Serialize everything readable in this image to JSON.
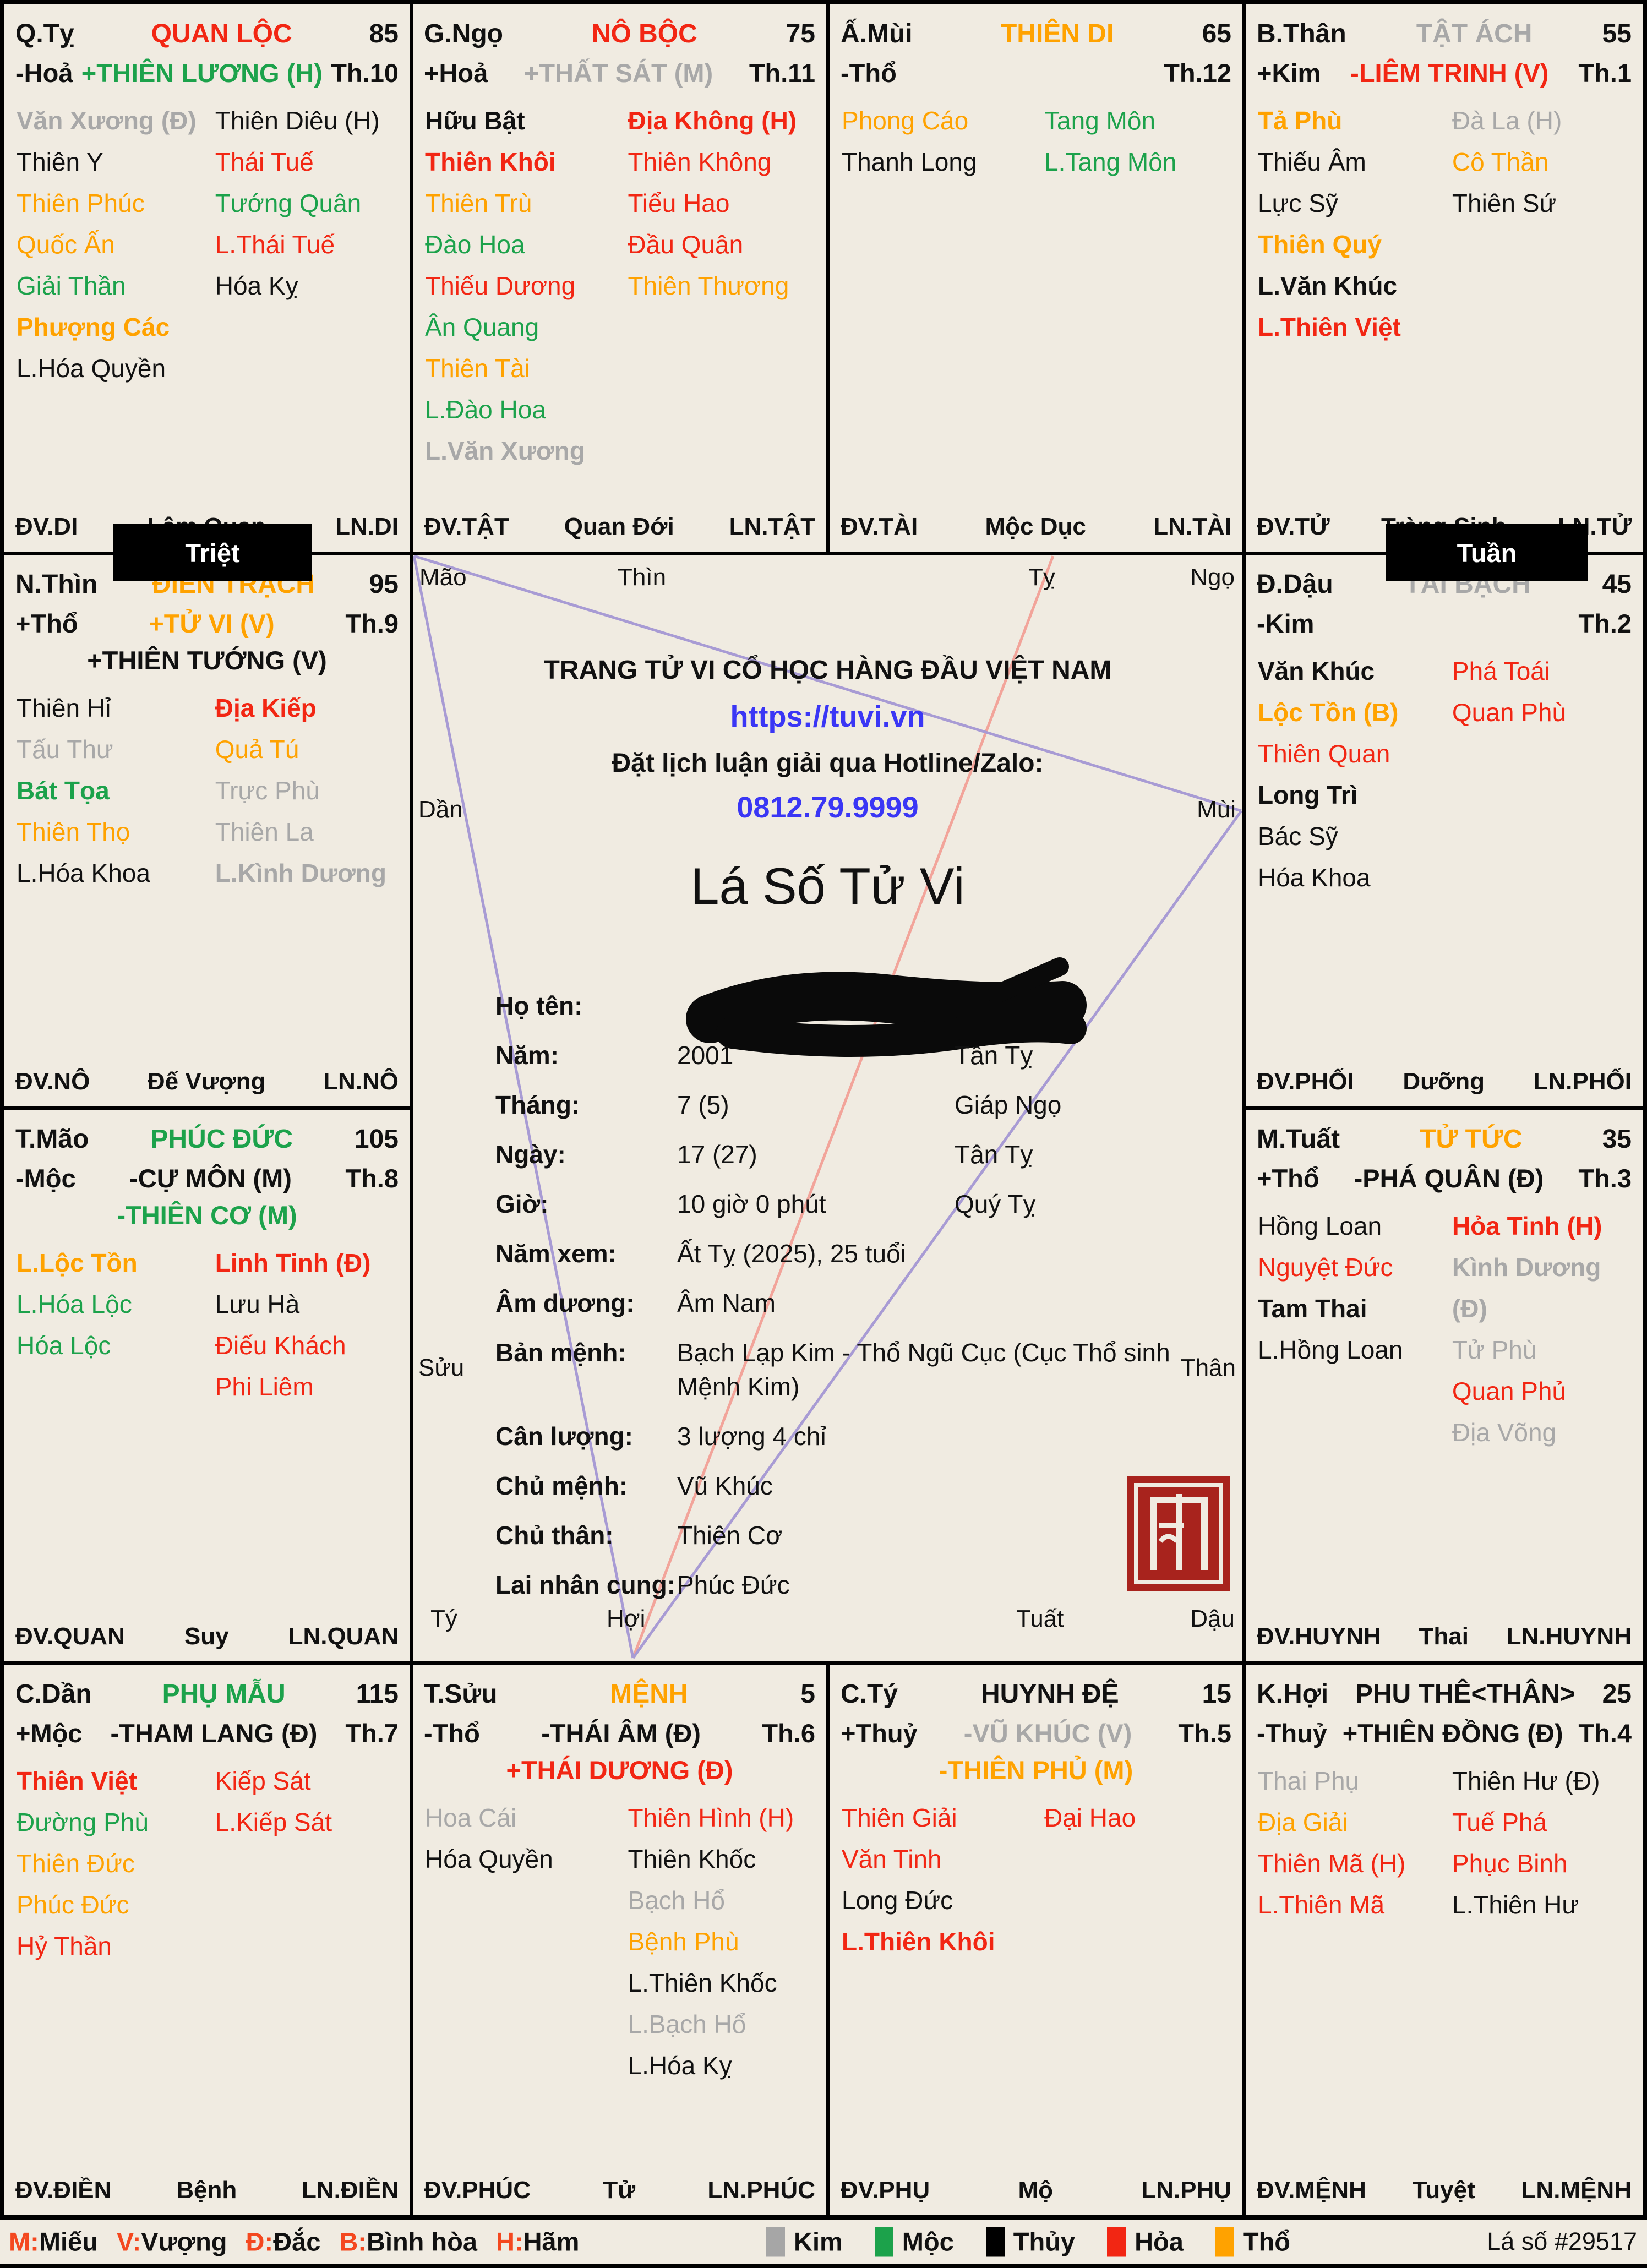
{
  "colors": {
    "background": "#f0ebe1",
    "black": "#111111",
    "red": "#f22613",
    "orange": "#ffa200",
    "green": "#1ca24b",
    "gray": "#a8a8a8",
    "blue": "#3a36f5",
    "seal_red": "#a8231d",
    "line_purple": "#a89bd4",
    "line_salmon": "#f2a49a",
    "badge_bg": "#000000"
  },
  "badges": [
    {
      "label": "Triệt"
    },
    {
      "label": "Tuần"
    }
  ],
  "palaces": [
    {
      "key": "quan-loc",
      "slot": "r1c1",
      "branch": "Q.Tỵ",
      "name": "QUAN LỘC",
      "name_color": "red",
      "score": "85",
      "element": "-Hoả",
      "th": "Th.10",
      "mains": [
        {
          "text": "+THIÊN LƯƠNG (H)",
          "color": "green"
        }
      ],
      "stars_left": [
        {
          "text": "Văn Xương (Đ)",
          "color": "gray",
          "bold": true
        },
        {
          "text": "Thiên Y",
          "color": "black"
        },
        {
          "text": "Thiên Phúc",
          "color": "orange"
        },
        {
          "text": "Quốc Ấn",
          "color": "orange"
        },
        {
          "text": "Giải Thần",
          "color": "green"
        },
        {
          "text": "Phượng Các",
          "color": "orange",
          "bold": true
        },
        {
          "text": "L.Hóa Quyền",
          "color": "black"
        }
      ],
      "stars_right": [
        {
          "text": "Thiên Diêu (H)",
          "color": "black"
        },
        {
          "text": "Thái Tuế",
          "color": "red"
        },
        {
          "text": "Tướng Quân",
          "color": "green"
        },
        {
          "text": "L.Thái Tuế",
          "color": "red"
        },
        {
          "text": "Hóa Kỵ",
          "color": "black"
        }
      ],
      "dv": "ĐV.DI",
      "van": "Lâm Quan",
      "ln": "LN.DI"
    },
    {
      "key": "no-boc",
      "slot": "r1c2",
      "branch": "G.Ngọ",
      "name": "NÔ BỘC",
      "name_color": "red",
      "score": "75",
      "element": "+Hoả",
      "th": "Th.11",
      "mains": [
        {
          "text": "+THẤT SÁT (M)",
          "color": "gray"
        }
      ],
      "stars_left": [
        {
          "text": "Hữu Bật",
          "color": "black",
          "bold": true
        },
        {
          "text": "Thiên Khôi",
          "color": "red",
          "bold": true
        },
        {
          "text": "Thiên Trù",
          "color": "orange"
        },
        {
          "text": "Đào Hoa",
          "color": "green"
        },
        {
          "text": "Thiếu Dương",
          "color": "red"
        },
        {
          "text": "Ân Quang",
          "color": "green"
        },
        {
          "text": "Thiên Tài",
          "color": "orange"
        },
        {
          "text": "L.Đào Hoa",
          "color": "green"
        },
        {
          "text": "L.Văn Xương",
          "color": "gray",
          "bold": true
        }
      ],
      "stars_right": [
        {
          "text": "Địa Không (H)",
          "color": "red",
          "bold": true
        },
        {
          "text": "Thiên Không",
          "color": "red"
        },
        {
          "text": "Tiểu Hao",
          "color": "red"
        },
        {
          "text": "Đầu Quân",
          "color": "red"
        },
        {
          "text": "Thiên Thương",
          "color": "orange"
        }
      ],
      "dv": "ĐV.TẬT",
      "van": "Quan Đới",
      "ln": "LN.TẬT"
    },
    {
      "key": "thien-di",
      "slot": "r1c3",
      "branch": "Ấ.Mùi",
      "name": "THIÊN DI",
      "name_color": "orange",
      "score": "65",
      "element": "-Thổ",
      "th": "Th.12",
      "mains": [],
      "stars_left": [
        {
          "text": "Phong Cáo",
          "color": "orange"
        },
        {
          "text": "Thanh Long",
          "color": "black"
        }
      ],
      "stars_right": [
        {
          "text": "Tang Môn",
          "color": "green"
        },
        {
          "text": "L.Tang Môn",
          "color": "green"
        }
      ],
      "dv": "ĐV.TÀI",
      "van": "Mộc Dục",
      "ln": "LN.TÀI"
    },
    {
      "key": "tat-ach",
      "slot": "r1c4",
      "branch": "B.Thân",
      "name": "TẬT ÁCH",
      "name_color": "gray",
      "score": "55",
      "element": "+Kim",
      "th": "Th.1",
      "mains": [
        {
          "text": "-LIÊM TRINH (V)",
          "color": "red"
        }
      ],
      "stars_left": [
        {
          "text": "Tả Phù",
          "color": "orange",
          "bold": true
        },
        {
          "text": "Thiếu Âm",
          "color": "black"
        },
        {
          "text": "Lực Sỹ",
          "color": "black"
        },
        {
          "text": "Thiên Quý",
          "color": "orange",
          "bold": true
        },
        {
          "text": "L.Văn Khúc",
          "color": "black",
          "bold": true
        },
        {
          "text": "L.Thiên Việt",
          "color": "red",
          "bold": true
        }
      ],
      "stars_right": [
        {
          "text": "Đà La (H)",
          "color": "gray"
        },
        {
          "text": "Cô Thần",
          "color": "orange"
        },
        {
          "text": "Thiên Sứ",
          "color": "black"
        }
      ],
      "dv": "ĐV.TỬ",
      "van": "Tràng Sinh",
      "ln": "LN.TỬ"
    },
    {
      "key": "dien-trach",
      "slot": "r2c1",
      "branch": "N.Thìn",
      "name": "ĐIỀN TRẠCH",
      "name_color": "orange",
      "score": "95",
      "element": "+Thổ",
      "th": "Th.9",
      "mains": [
        {
          "text": "+TỬ VI (V)",
          "color": "orange"
        },
        {
          "text": "+THIÊN TƯỚNG (V)",
          "color": "black"
        }
      ],
      "stars_left": [
        {
          "text": "Thiên Hỉ",
          "color": "black"
        },
        {
          "text": "Tấu Thư",
          "color": "gray"
        },
        {
          "text": "Bát Tọa",
          "color": "green",
          "bold": true
        },
        {
          "text": "Thiên Thọ",
          "color": "orange"
        },
        {
          "text": "L.Hóa Khoa",
          "color": "black"
        }
      ],
      "stars_right": [
        {
          "text": "Địa Kiếp",
          "color": "red",
          "bold": true
        },
        {
          "text": "Quả Tú",
          "color": "orange"
        },
        {
          "text": "Trực Phù",
          "color": "gray"
        },
        {
          "text": "Thiên La",
          "color": "gray"
        },
        {
          "text": "L.Kình Dương",
          "color": "gray",
          "bold": true
        }
      ],
      "dv": "ĐV.NÔ",
      "van": "Đế Vượng",
      "ln": "LN.NÔ"
    },
    {
      "key": "tai-bach",
      "slot": "r2c4",
      "branch": "Đ.Dậu",
      "name": "TÀI BẠCH",
      "name_color": "gray",
      "score": "45",
      "element": "-Kim",
      "th": "Th.2",
      "mains": [],
      "stars_left": [
        {
          "text": "Văn Khúc",
          "color": "black",
          "bold": true
        },
        {
          "text": "Lộc Tồn (B)",
          "color": "orange",
          "bold": true
        },
        {
          "text": "Thiên Quan",
          "color": "red"
        },
        {
          "text": "Long Trì",
          "color": "black",
          "bold": true
        },
        {
          "text": "Bác Sỹ",
          "color": "black"
        },
        {
          "text": "Hóa Khoa",
          "color": "black"
        }
      ],
      "stars_right": [
        {
          "text": "Phá Toái",
          "color": "red"
        },
        {
          "text": "Quan Phù",
          "color": "red"
        }
      ],
      "dv": "ĐV.PHỐI",
      "van": "Dưỡng",
      "ln": "LN.PHỐI"
    },
    {
      "key": "phuc-duc",
      "slot": "r3c1",
      "branch": "T.Mão",
      "name": "PHÚC ĐỨC",
      "name_color": "green",
      "score": "105",
      "element": "-Mộc",
      "th": "Th.8",
      "mains": [
        {
          "text": "-CỰ MÔN (M)",
          "color": "black"
        },
        {
          "text": "-THIÊN CƠ (M)",
          "color": "green"
        }
      ],
      "stars_left": [
        {
          "text": "L.Lộc Tồn",
          "color": "orange",
          "bold": true
        },
        {
          "text": "L.Hóa Lộc",
          "color": "green"
        },
        {
          "text": "Hóa Lộc",
          "color": "green"
        }
      ],
      "stars_right": [
        {
          "text": "Linh Tinh (Đ)",
          "color": "red",
          "bold": true
        },
        {
          "text": "Lưu Hà",
          "color": "black"
        },
        {
          "text": "Điếu Khách",
          "color": "red"
        },
        {
          "text": "Phi Liêm",
          "color": "red"
        }
      ],
      "dv": "ĐV.QUAN",
      "van": "Suy",
      "ln": "LN.QUAN"
    },
    {
      "key": "tu-tuc",
      "slot": "r3c4",
      "branch": "M.Tuất",
      "name": "TỬ TỨC",
      "name_color": "orange",
      "score": "35",
      "element": "+Thổ",
      "th": "Th.3",
      "mains": [
        {
          "text": "-PHÁ QUÂN (Đ)",
          "color": "black"
        }
      ],
      "stars_left": [
        {
          "text": "Hồng Loan",
          "color": "black"
        },
        {
          "text": "Nguyệt Đức",
          "color": "red"
        },
        {
          "text": "Tam Thai",
          "color": "black",
          "bold": true
        },
        {
          "text": "L.Hồng Loan",
          "color": "black"
        }
      ],
      "stars_right": [
        {
          "text": "Hỏa Tinh (H)",
          "color": "red",
          "bold": true
        },
        {
          "text": "Kình Dương (Đ)",
          "color": "gray",
          "bold": true
        },
        {
          "text": "Tử Phù",
          "color": "gray"
        },
        {
          "text": "Quan Phủ",
          "color": "red"
        },
        {
          "text": "Địa Võng",
          "color": "gray"
        }
      ],
      "dv": "ĐV.HUYNH",
      "van": "Thai",
      "ln": "LN.HUYNH"
    },
    {
      "key": "phu-mau",
      "slot": "r4c1",
      "branch": "C.Dần",
      "name": "PHỤ MẪU",
      "name_color": "green",
      "score": "115",
      "element": "+Mộc",
      "th": "Th.7",
      "mains": [
        {
          "text": "-THAM LANG (Đ)",
          "color": "black"
        }
      ],
      "stars_left": [
        {
          "text": "Thiên Việt",
          "color": "red",
          "bold": true
        },
        {
          "text": "Đường Phù",
          "color": "green"
        },
        {
          "text": "Thiên Đức",
          "color": "orange"
        },
        {
          "text": "Phúc Đức",
          "color": "orange"
        },
        {
          "text": "Hỷ Thần",
          "color": "red"
        }
      ],
      "stars_right": [
        {
          "text": "Kiếp Sát",
          "color": "red"
        },
        {
          "text": "L.Kiếp Sát",
          "color": "red"
        }
      ],
      "dv": "ĐV.ĐIỀN",
      "van": "Bệnh",
      "ln": "LN.ĐIỀN"
    },
    {
      "key": "menh",
      "slot": "r4c2",
      "branch": "T.Sửu",
      "name": "MỆNH",
      "name_color": "orange",
      "score": "5",
      "element": "-Thổ",
      "th": "Th.6",
      "mains": [
        {
          "text": "-THÁI ÂM (Đ)",
          "color": "black"
        },
        {
          "text": "+THÁI DƯƠNG (Đ)",
          "color": "red"
        }
      ],
      "stars_left": [
        {
          "text": "Hoa Cái",
          "color": "gray"
        },
        {
          "text": "Hóa Quyền",
          "color": "black"
        }
      ],
      "stars_right": [
        {
          "text": "Thiên Hình (H)",
          "color": "red"
        },
        {
          "text": "Thiên Khốc",
          "color": "black"
        },
        {
          "text": "Bạch Hổ",
          "color": "gray"
        },
        {
          "text": "Bệnh Phù",
          "color": "orange"
        },
        {
          "text": "L.Thiên Khốc",
          "color": "black"
        },
        {
          "text": "L.Bạch Hổ",
          "color": "gray"
        },
        {
          "text": "L.Hóa Kỵ",
          "color": "black"
        }
      ],
      "dv": "ĐV.PHÚC",
      "van": "Tử",
      "ln": "LN.PHÚC"
    },
    {
      "key": "huynh-de",
      "slot": "r4c3",
      "branch": "C.Tý",
      "name": "HUYNH ĐỆ",
      "name_color": "black",
      "score": "15",
      "element": "+Thuỷ",
      "th": "Th.5",
      "mains": [
        {
          "text": "-VŨ KHÚC (V)",
          "color": "gray"
        },
        {
          "text": "-THIÊN PHỦ (M)",
          "color": "orange"
        }
      ],
      "stars_left": [
        {
          "text": "Thiên Giải",
          "color": "red"
        },
        {
          "text": "Văn Tinh",
          "color": "red"
        },
        {
          "text": "Long Đức",
          "color": "black"
        },
        {
          "text": "L.Thiên Khôi",
          "color": "red",
          "bold": true
        }
      ],
      "stars_right": [
        {
          "text": "Đại Hao",
          "color": "red"
        }
      ],
      "dv": "ĐV.PHỤ",
      "van": "Mộ",
      "ln": "LN.PHỤ"
    },
    {
      "key": "phu-the",
      "slot": "r4c4",
      "branch": "K.Hợi",
      "name": "PHU THÊ<THÂN>",
      "name_color": "black",
      "score": "25",
      "element": "-Thuỷ",
      "th": "Th.4",
      "mains": [
        {
          "text": "+THIÊN ĐỒNG (Đ)",
          "color": "black"
        }
      ],
      "stars_left": [
        {
          "text": "Thai Phụ",
          "color": "gray"
        },
        {
          "text": "Địa Giải",
          "color": "orange"
        },
        {
          "text": "Thiên Mã (H)",
          "color": "red"
        },
        {
          "text": "L.Thiên Mã",
          "color": "red"
        }
      ],
      "stars_right": [
        {
          "text": "Thiên Hư (Đ)",
          "color": "black"
        },
        {
          "text": "Tuế Phá",
          "color": "red"
        },
        {
          "text": "Phục Binh",
          "color": "red"
        },
        {
          "text": "L.Thiên Hư",
          "color": "black"
        }
      ],
      "dv": "ĐV.MỆNH",
      "van": "Tuyệt",
      "ln": "LN.MỆNH"
    }
  ],
  "center": {
    "corner_labels": {
      "mao": "Mão",
      "thin": "Thìn",
      "ty": "Tỵ",
      "ngo": "Ngọ",
      "dan": "Dần",
      "mui": "Mùi",
      "suu": "Sửu",
      "than": "Thân",
      "ty_bottom": "Tý",
      "hoi": "Hợi",
      "tuat": "Tuất",
      "dau": "Dậu"
    },
    "promo": {
      "line1": "TRANG TỬ VI CỔ HỌC HÀNG ĐẦU VIỆT NAM",
      "url": "https://tuvi.vn",
      "hotline_label": "Đặt lịch luận giải qua Hotline/Zalo:",
      "phone": "0812.79.9999"
    },
    "title": "Lá Số Tử Vi",
    "fields": [
      {
        "label": "Họ tên:",
        "value": "",
        "redacted": true
      },
      {
        "label": "Năm:",
        "value": "2001",
        "value2": "Tân Tỵ"
      },
      {
        "label": "Tháng:",
        "value": "7 (5)",
        "value2": "Giáp Ngọ"
      },
      {
        "label": "Ngày:",
        "value": "17 (27)",
        "value2": "Tân Tỵ"
      },
      {
        "label": "Giờ:",
        "value": "10 giờ 0 phút",
        "value2": "Quý Tỵ"
      },
      {
        "label": "Năm xem:",
        "value": "Ất Tỵ (2025), 25 tuổi"
      },
      {
        "label": "Âm dương:",
        "value": "Âm Nam"
      },
      {
        "label": "Bản mệnh:",
        "value": "Bạch Lạp Kim - Thổ Ngũ Cục (Cục Thổ sinh Mệnh Kim)"
      },
      {
        "label": "Cân lượng:",
        "value": "3 lượng 4 chỉ"
      },
      {
        "label": "Chủ mệnh:",
        "value": "Vũ Khúc"
      },
      {
        "label": "Chủ thân:",
        "value": "Thiên Cơ"
      },
      {
        "label": "Lai nhân cung:",
        "value": "Phúc Đức"
      }
    ]
  },
  "footer": {
    "brightness": [
      {
        "key": "M:",
        "label": "Miếu"
      },
      {
        "key": "V:",
        "label": "Vượng"
      },
      {
        "key": "Đ:",
        "label": "Đắc"
      },
      {
        "key": "B:",
        "label": "Bình hòa"
      },
      {
        "key": "H:",
        "label": "Hãm"
      }
    ],
    "elements": [
      {
        "label": "Kim",
        "color": "#a6a6a6"
      },
      {
        "label": "Mộc",
        "color": "#1ca24b"
      },
      {
        "label": "Thủy",
        "color": "#000000"
      },
      {
        "label": "Hỏa",
        "color": "#f22613"
      },
      {
        "label": "Thổ",
        "color": "#ffa200"
      }
    ],
    "chart_id": "Lá số #29517"
  }
}
